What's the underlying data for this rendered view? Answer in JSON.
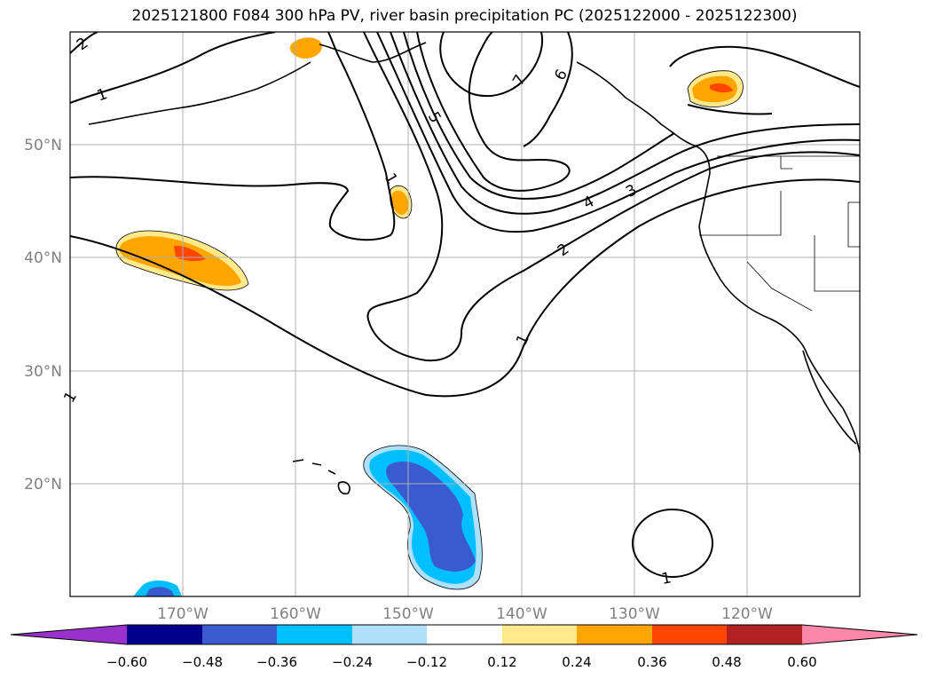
{
  "title": "2025121800 F084 300 hPa PV, river basin precipitation PC (2025122000 - 2025122300)",
  "map": {
    "lat_labels": [
      "50°N",
      "40°N",
      "30°N",
      "20°N"
    ],
    "lon_labels": [
      "170°W",
      "160°W",
      "150°W",
      "140°W",
      "130°W",
      "120°W"
    ]
  },
  "contour_labels": [
    "2",
    "1",
    "1",
    "5",
    "7",
    "6",
    "4",
    "3",
    "2",
    "1",
    "1",
    "1"
  ],
  "colorbar": {
    "tick_labels": [
      "−0.60",
      "−0.48",
      "−0.36",
      "−0.24",
      "−0.12",
      "0.12",
      "0.24",
      "0.36",
      "0.48",
      "0.60"
    ],
    "colors": [
      "#9932cc",
      "#00008b",
      "#3a5bd0",
      "#00bfff",
      "#afe0fa",
      "#ffffff",
      "#ffe98a",
      "#ffa500",
      "#ff4500",
      "#b22222",
      "#ff88aa"
    ]
  }
}
